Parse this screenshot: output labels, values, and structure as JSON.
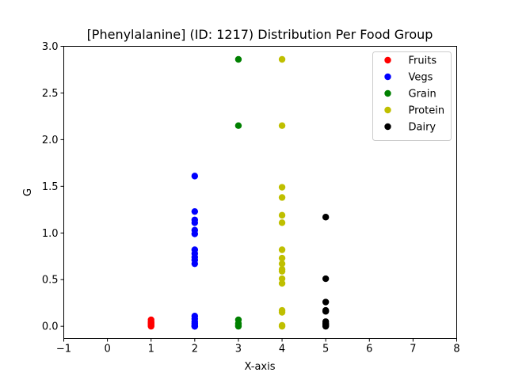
{
  "chart_data": {
    "type": "scatter",
    "title": "[Phenylalanine] (ID: 1217) Distribution Per Food Group",
    "xlabel": "X-axis",
    "ylabel": "G",
    "xlim": [
      -1,
      8
    ],
    "ylim": [
      -0.13,
      3.0
    ],
    "xticks": [
      -1,
      0,
      1,
      2,
      3,
      4,
      5,
      6,
      7,
      8
    ],
    "yticks": [
      0.0,
      0.5,
      1.0,
      1.5,
      2.0,
      2.5,
      3.0
    ],
    "xtick_labels": [
      "−1",
      "0",
      "1",
      "2",
      "3",
      "4",
      "5",
      "6",
      "7",
      "8"
    ],
    "ytick_labels": [
      "0.0",
      "0.5",
      "1.0",
      "1.5",
      "2.0",
      "2.5",
      "3.0"
    ],
    "grid": false,
    "legend_position": "top-right",
    "series": [
      {
        "name": "Fruits",
        "color": "#ff0000",
        "x": [
          1,
          1,
          1,
          1,
          1,
          1,
          1
        ],
        "y": [
          0.0,
          0.01,
          0.02,
          0.03,
          0.04,
          0.05,
          0.07
        ]
      },
      {
        "name": "Vegs",
        "color": "#0000ff",
        "x": [
          2,
          2,
          2,
          2,
          2,
          2,
          2,
          2,
          2,
          2,
          2,
          2,
          2,
          2,
          2,
          2,
          2,
          2
        ],
        "y": [
          0.0,
          0.01,
          0.03,
          0.05,
          0.08,
          0.11,
          0.67,
          0.71,
          0.74,
          0.78,
          0.82,
          0.99,
          1.03,
          1.11,
          1.14,
          1.23,
          1.61,
          0.0
        ]
      },
      {
        "name": "Grain",
        "color": "#008000",
        "x": [
          3,
          3,
          3,
          3,
          3,
          3
        ],
        "y": [
          0.0,
          0.01,
          0.03,
          0.07,
          2.15,
          2.86
        ]
      },
      {
        "name": "Protein",
        "color": "#bfbf00",
        "x": [
          4,
          4,
          4,
          4,
          4,
          4,
          4,
          4,
          4,
          4,
          4,
          4,
          4,
          4,
          4,
          4,
          4
        ],
        "y": [
          0.0,
          0.01,
          0.15,
          0.17,
          0.46,
          0.51,
          0.59,
          0.61,
          0.67,
          0.73,
          0.82,
          1.11,
          1.19,
          1.38,
          1.49,
          2.15,
          2.86
        ]
      },
      {
        "name": "Dairy",
        "color": "#000000",
        "x": [
          5,
          5,
          5,
          5,
          5,
          5,
          5,
          5,
          5,
          5
        ],
        "y": [
          0.0,
          0.01,
          0.02,
          0.03,
          0.05,
          0.16,
          0.17,
          0.26,
          0.51,
          1.17
        ]
      }
    ]
  }
}
